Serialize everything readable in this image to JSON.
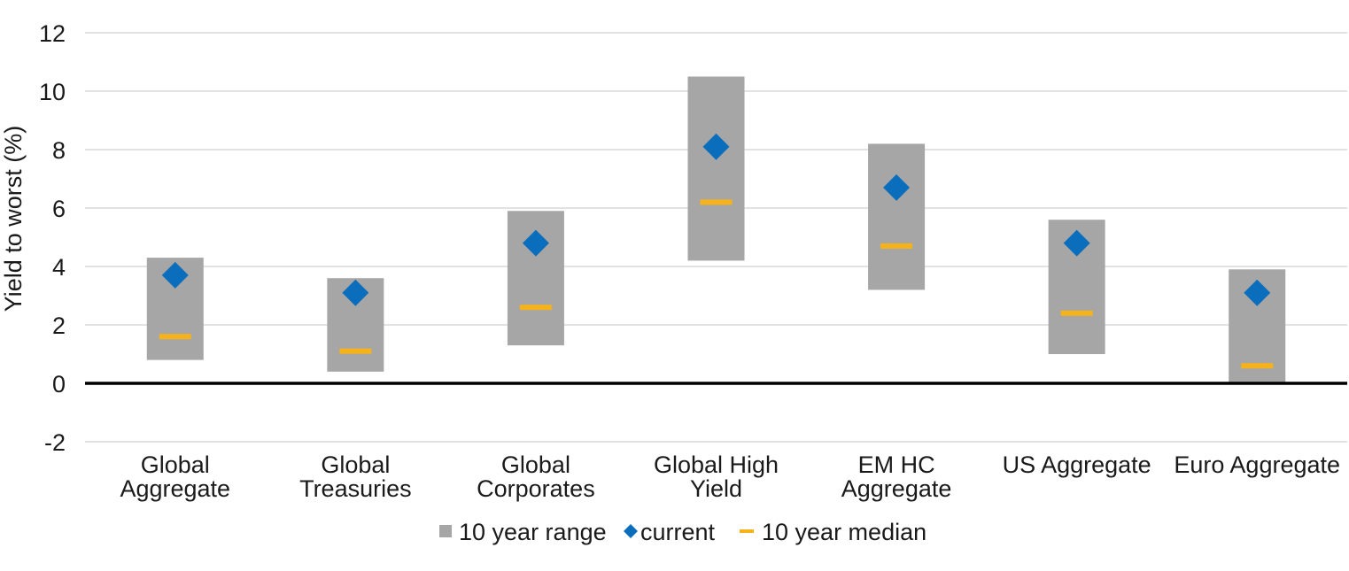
{
  "chart_data": {
    "type": "range-marker",
    "title": "",
    "xlabel": "",
    "ylabel": "Yield to worst (%)",
    "ylim": [
      -2,
      12
    ],
    "yticks": [
      12,
      10,
      8,
      6,
      4,
      2,
      0,
      -2
    ],
    "grid": true,
    "legend_placement": "bottom-center",
    "categories": [
      [
        "Global",
        "Aggregate"
      ],
      [
        "Global",
        "Treasuries"
      ],
      [
        "Global",
        "Corporates"
      ],
      [
        "Global High",
        "Yield"
      ],
      [
        "EM HC",
        "Aggregate"
      ],
      [
        "US Aggregate"
      ],
      [
        "Euro Aggregate"
      ]
    ],
    "series": [
      {
        "name": "10 year range",
        "kind": "range",
        "low": [
          0.8,
          0.4,
          1.3,
          4.2,
          3.2,
          1.0,
          0.0
        ],
        "high": [
          4.3,
          3.6,
          5.9,
          10.5,
          8.2,
          5.6,
          3.9
        ]
      },
      {
        "name": "current",
        "kind": "marker",
        "values": [
          3.7,
          3.1,
          4.8,
          8.1,
          6.7,
          4.8,
          3.1
        ]
      },
      {
        "name": "10 year median",
        "kind": "dash",
        "values": [
          1.6,
          1.1,
          2.6,
          6.2,
          4.7,
          2.4,
          0.6
        ]
      }
    ],
    "colors": {
      "range": "#a6a6a6",
      "current": "#0a6ebd",
      "median": "#f5b21a",
      "grid": "#d9d9d9",
      "zero_line": "#000000",
      "text": "#1a1a1a"
    }
  }
}
